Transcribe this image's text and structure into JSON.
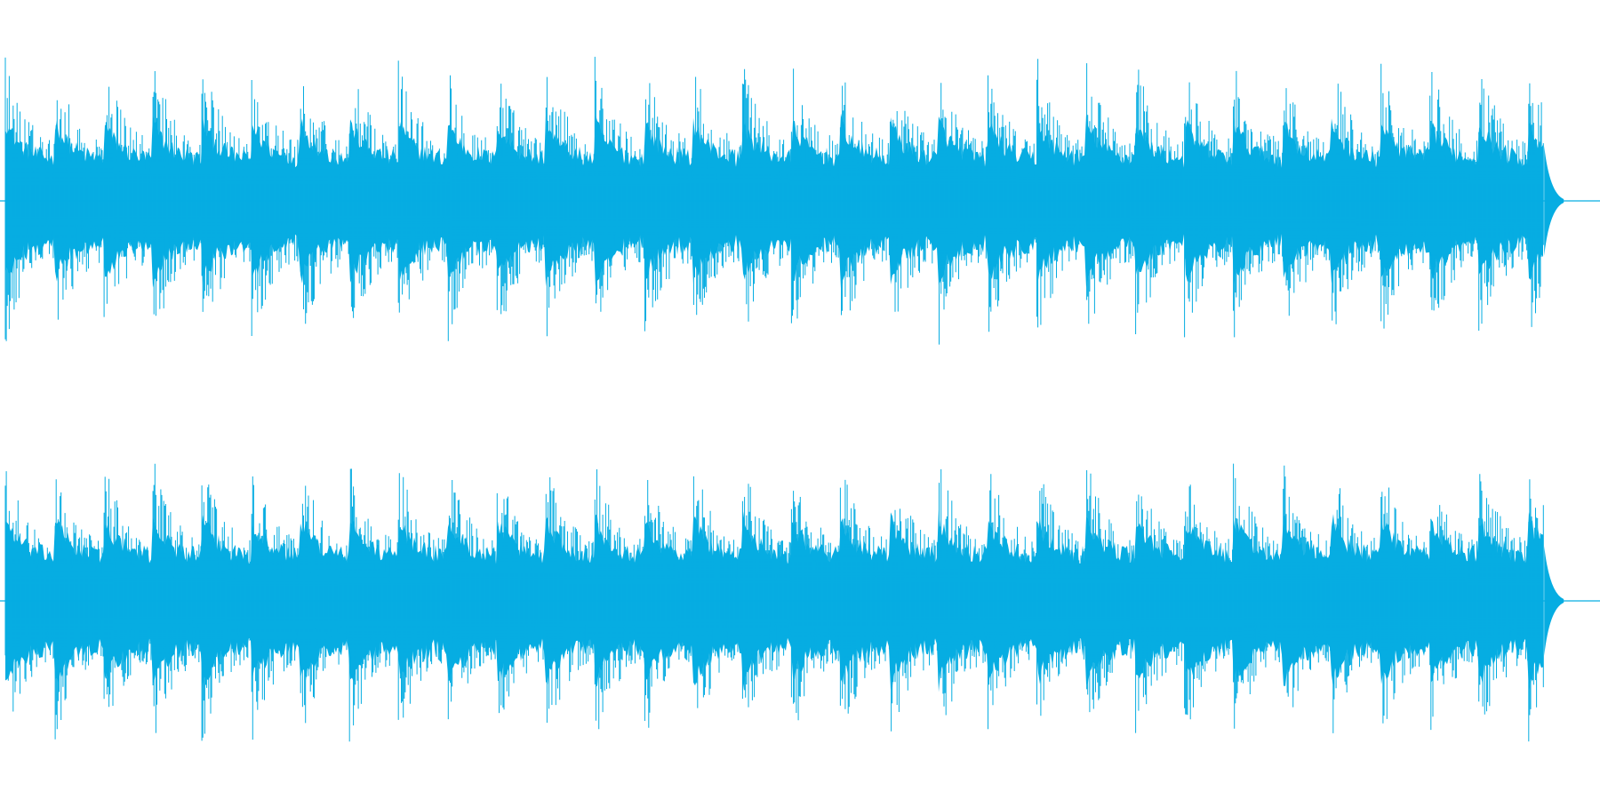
{
  "chart_data": {
    "type": "waveform",
    "channels": [
      {
        "name": "",
        "amplitude_range": [
          -1,
          1
        ],
        "duration_fraction_with_signal": 0.965,
        "beat_period_fraction": 0.0308,
        "peak_envelope_level": 0.82,
        "dense_body_level": 0.2
      },
      {
        "name": "",
        "amplitude_range": [
          -1,
          1
        ],
        "duration_fraction_with_signal": 0.965,
        "beat_period_fraction": 0.0308,
        "peak_envelope_level": 0.82,
        "dense_body_level": 0.22
      }
    ],
    "waveform_color": "#06ADE2",
    "background_color": "#FFFFFF",
    "axes_visible": false,
    "grid": false,
    "legend": "none"
  }
}
